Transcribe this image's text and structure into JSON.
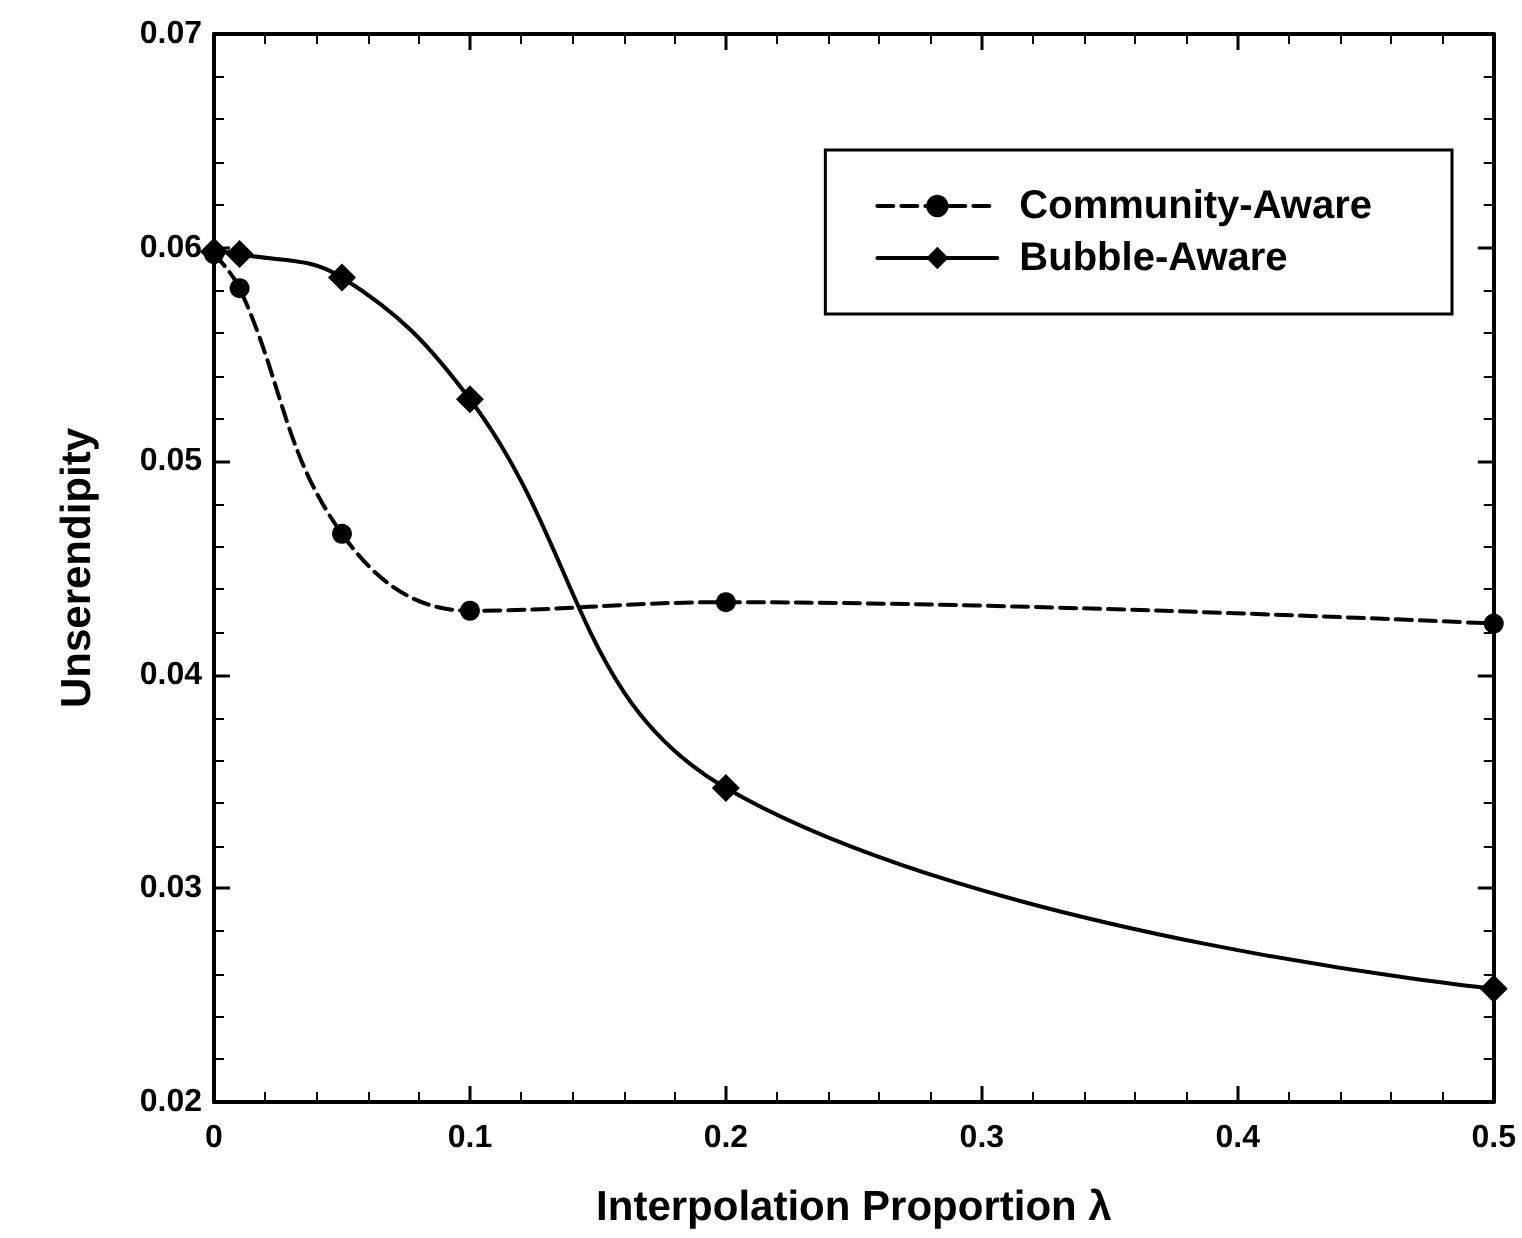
{
  "chart_data": {
    "type": "line",
    "xlabel": "Interpolation Proportion λ",
    "ylabel": "Unserendipity",
    "xlim": [
      0,
      0.5
    ],
    "xticks": [
      0,
      0.1,
      0.2,
      0.3,
      0.4,
      0.5
    ],
    "ylim": [
      0.02,
      0.07
    ],
    "yticks": [
      0.02,
      0.03,
      0.04,
      0.05,
      0.06,
      0.07
    ],
    "grid": false,
    "legend": "top right",
    "series": [
      {
        "name": "Community-Aware",
        "color": "#000000",
        "marker": "circle",
        "line_style": "dashed",
        "x": [
          0,
          0.01,
          0.05,
          0.1,
          0.2,
          0.5
        ],
        "values": [
          0.0597,
          0.0581,
          0.0466,
          0.043,
          0.0434,
          0.0424
        ]
      },
      {
        "name": "Bubble-Aware",
        "color": "#000000",
        "marker": "diamond",
        "line_style": "solid",
        "x": [
          0,
          0.01,
          0.05,
          0.1,
          0.2,
          0.5
        ],
        "values": [
          0.0598,
          0.0597,
          0.0586,
          0.0529,
          0.0347,
          0.0253
        ]
      }
    ]
  }
}
